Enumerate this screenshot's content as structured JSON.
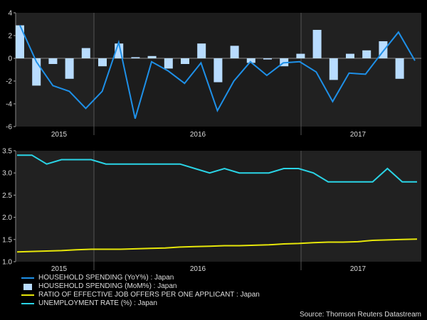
{
  "chart_data": [
    {
      "type": "bar+line",
      "ylim": [
        -6,
        4
      ],
      "yticks": [
        -6,
        -4,
        -2,
        0,
        2,
        4
      ],
      "year_labels": [
        "2015",
        "2016",
        "2017"
      ],
      "series": [
        {
          "name": "HOUSEHOLD SPENDING (YoY%) : Japan",
          "kind": "line",
          "color": "#1e90e8",
          "values": [
            2.9,
            -0.3,
            -2.4,
            -2.9,
            -4.4,
            -2.9,
            1.4,
            -5.3,
            -0.3,
            -1.1,
            -2.2,
            -0.4,
            -4.6,
            -2.0,
            -0.3,
            -1.5,
            -0.4,
            -0.3,
            -1.2,
            -3.8,
            -1.3,
            -1.4,
            0.5,
            2.3,
            -0.2
          ]
        },
        {
          "name": "HOUSEHOLD SPENDING (MoM%) : Japan",
          "kind": "bar",
          "color": "#b8dcff",
          "values": [
            2.9,
            -2.4,
            -0.5,
            -1.8,
            0.9,
            -0.7,
            1.3,
            0.1,
            0.2,
            -0.9,
            -0.5,
            1.3,
            -2.1,
            1.1,
            -0.4,
            -0.1,
            -0.7,
            0.4,
            2.5,
            -1.9,
            0.4,
            0.7,
            1.5,
            -1.8
          ]
        }
      ]
    },
    {
      "type": "line",
      "ylim": [
        1.0,
        3.5
      ],
      "yticks": [
        "1.0",
        "1.5",
        "2.0",
        "2.5",
        "3.0",
        "3.5"
      ],
      "year_labels": [
        "2015",
        "2016",
        "2017"
      ],
      "series": [
        {
          "name": "RATIO OF EFFECTIVE JOB OFFERS PER ONE APPLICANT : Japan",
          "color": "#e6e60a",
          "values": [
            1.22,
            1.23,
            1.24,
            1.25,
            1.27,
            1.28,
            1.28,
            1.28,
            1.29,
            1.3,
            1.31,
            1.33,
            1.34,
            1.35,
            1.36,
            1.36,
            1.37,
            1.38,
            1.4,
            1.41,
            1.43,
            1.44,
            1.44,
            1.45,
            1.48,
            1.49,
            1.5,
            1.51
          ]
        },
        {
          "name": "UNEMPLOYMENT RATE (%) : Japan",
          "color": "#2ad4e6",
          "values": [
            3.4,
            3.4,
            3.2,
            3.3,
            3.3,
            3.3,
            3.2,
            3.2,
            3.2,
            3.2,
            3.2,
            3.2,
            3.1,
            3.0,
            3.1,
            3.0,
            3.0,
            3.0,
            3.1,
            3.1,
            3.0,
            2.8,
            2.8,
            2.8,
            2.8,
            3.1,
            2.8,
            2.8
          ]
        }
      ]
    }
  ],
  "legend": [
    {
      "label": "HOUSEHOLD SPENDING (YoY%) : Japan",
      "marker": "line",
      "color": "#1e90e8"
    },
    {
      "label": "HOUSEHOLD SPENDING (MoM%) : Japan",
      "marker": "bar",
      "color": "#b8dcff"
    },
    {
      "label": "RATIO OF EFFECTIVE JOB OFFERS PER ONE APPLICANT : Japan",
      "marker": "line",
      "color": "#e6e60a"
    },
    {
      "label": "UNEMPLOYMENT RATE (%) : Japan",
      "marker": "line",
      "color": "#2ad4e6"
    }
  ],
  "source": "Source: Thomson Reuters Datastream",
  "colors": {
    "background": "#000000",
    "panel": "#1c1c1c",
    "alt_band": "#262626",
    "text": "#dddddd"
  }
}
